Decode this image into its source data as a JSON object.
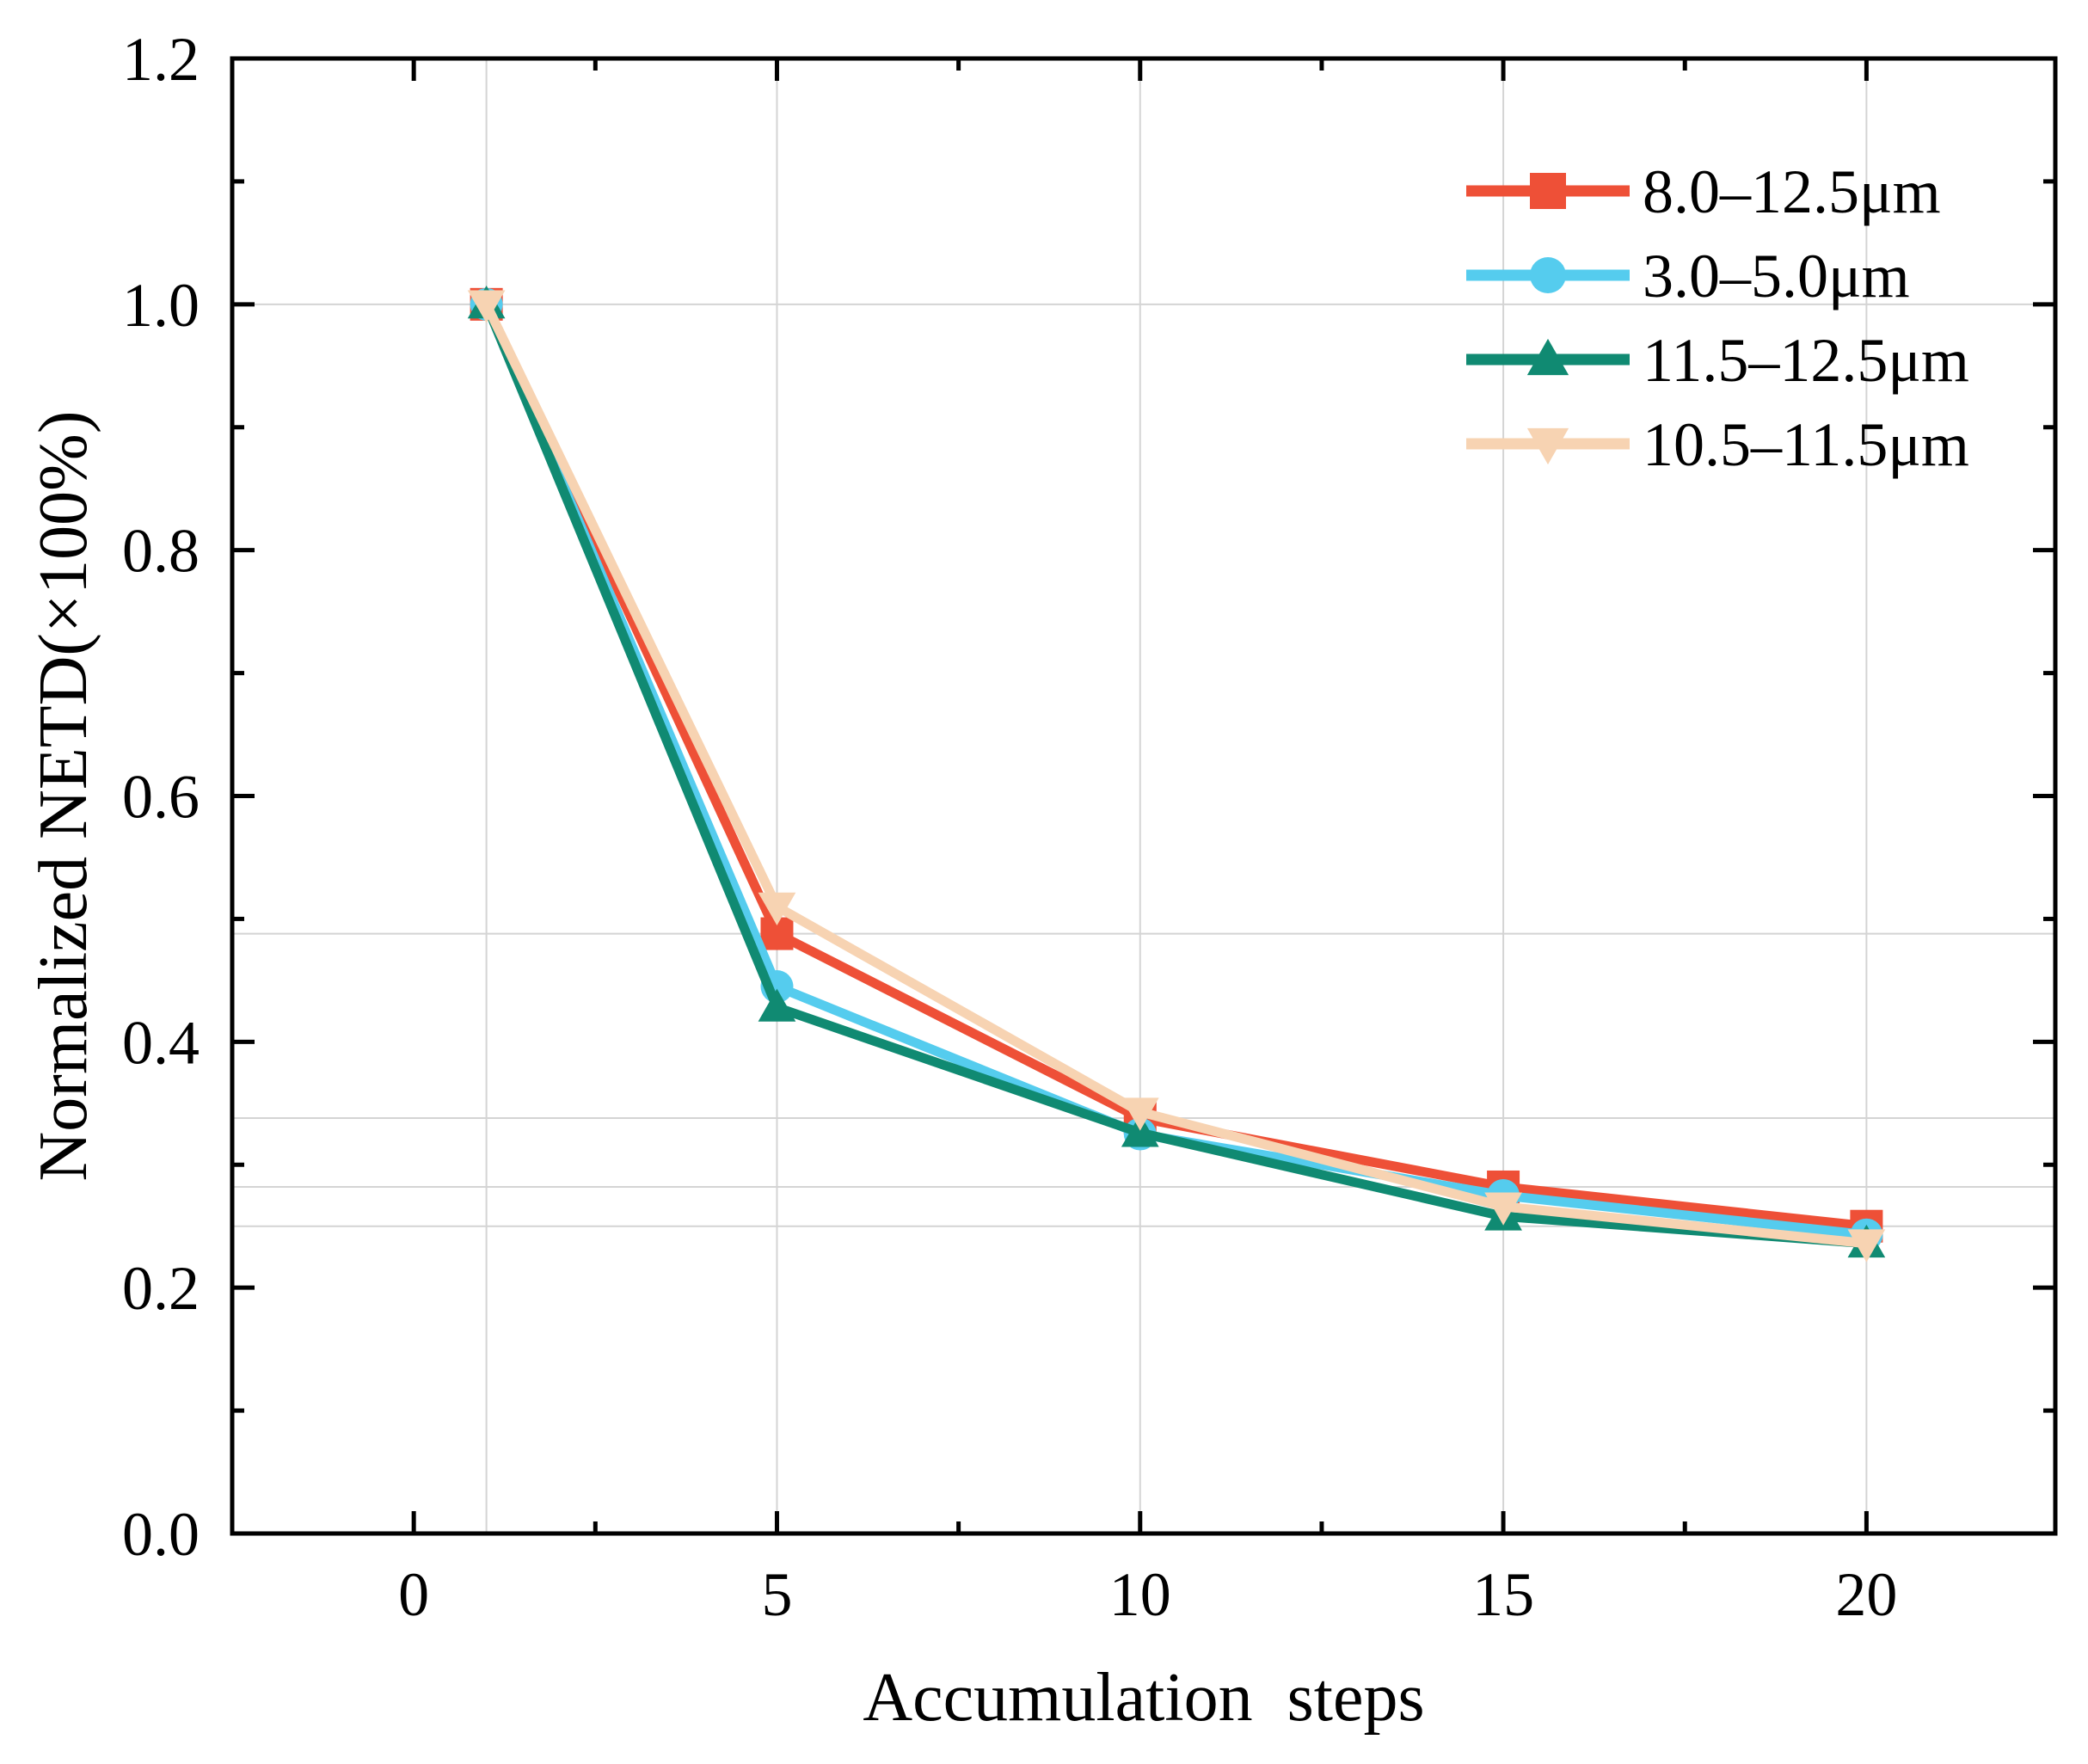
{
  "chart_data": {
    "type": "line",
    "title": "",
    "xlabel": "Accumulation  steps",
    "ylabel": "Normalized NETD(×100%)",
    "xlim": [
      -2.5,
      22.6
    ],
    "ylim": [
      0.0,
      1.2
    ],
    "x_ticks": [
      0,
      5,
      10,
      15,
      20
    ],
    "x_tick_labels": [
      "0",
      "5",
      "10",
      "15",
      "20"
    ],
    "y_ticks": [
      0.0,
      0.2,
      0.4,
      0.6,
      0.8,
      1.0,
      1.2
    ],
    "y_tick_labels": [
      "0.0",
      "0.2",
      "0.4",
      "0.6",
      "0.8",
      "1.0",
      "1.2"
    ],
    "x_minor_ticks": [
      2.5,
      7.5,
      12.5,
      17.5
    ],
    "y_minor_ticks": [
      0.1,
      0.3,
      0.5,
      0.7,
      0.9,
      1.1
    ],
    "grid": true,
    "reference_x": [
      1,
      5,
      10,
      15,
      20
    ],
    "reference_y": [
      1.0,
      0.488,
      0.338,
      0.282,
      0.25
    ],
    "legend_position": "top-right",
    "x": [
      1,
      5,
      10,
      15,
      20
    ],
    "series": [
      {
        "name": "8.0–12.5μm",
        "color": "#EE5037",
        "marker": "square",
        "values": [
          1.0,
          0.488,
          0.338,
          0.282,
          0.25
        ]
      },
      {
        "name": "3.0–5.0μm",
        "color": "#55CCEE",
        "marker": "circle",
        "values": [
          1.0,
          0.445,
          0.325,
          0.275,
          0.243
        ]
      },
      {
        "name": "11.5–12.5μm",
        "color": "#108A72",
        "marker": "triangle-up",
        "values": [
          1.0,
          0.428,
          0.326,
          0.258,
          0.236
        ]
      },
      {
        "name": "10.5–11.5μm",
        "color": "#F7D3B2",
        "marker": "triangle-down",
        "values": [
          1.0,
          0.51,
          0.343,
          0.266,
          0.236
        ]
      }
    ]
  }
}
